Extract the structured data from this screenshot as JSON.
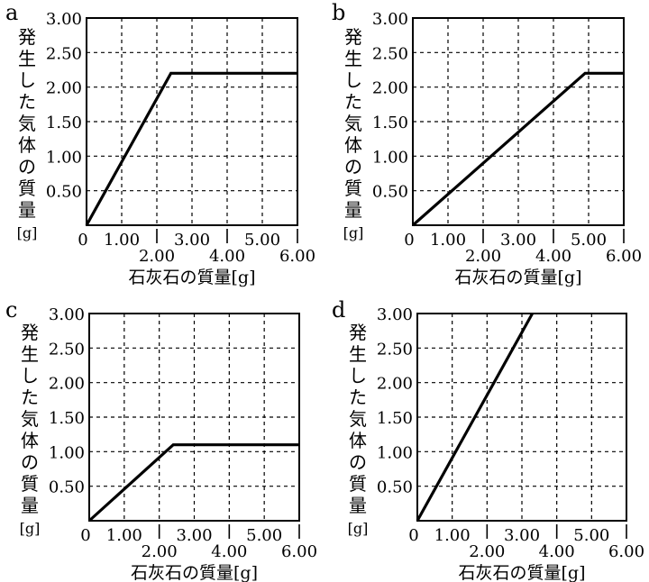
{
  "shared": {
    "ylabel_chars": [
      "発",
      "生",
      "し",
      "た",
      "気",
      "体",
      "の",
      "質",
      "量",
      "[g]"
    ],
    "xlabel": "石灰石の質量[g]",
    "xlim": [
      0,
      6
    ],
    "ylim": [
      0,
      3
    ],
    "x_ticks_upper": [
      "1.00",
      "3.00",
      "5.00"
    ],
    "x_ticks_lower": [
      "2.00",
      "4.00",
      "6.00"
    ],
    "x_tick_values_upper": [
      1,
      3,
      5
    ],
    "x_tick_values_lower": [
      2,
      4,
      6
    ],
    "origin_label": "0",
    "y_ticks": [
      "0.50",
      "1.00",
      "1.50",
      "2.00",
      "2.50",
      "3.00"
    ],
    "y_tick_values": [
      0.5,
      1,
      1.5,
      2,
      2.5,
      3
    ],
    "line_color": "#000000",
    "grid": "dashed"
  },
  "chart_data": [
    {
      "panel_label": "a",
      "type": "line",
      "x": [
        0,
        2.4,
        6
      ],
      "y": [
        0,
        2.2,
        2.2
      ],
      "xlabel": "石灰石の質量[g]",
      "ylabel": "発生した気体の質量[g]",
      "xlim": [
        0,
        6
      ],
      "ylim": [
        0,
        3
      ]
    },
    {
      "panel_label": "b",
      "type": "line",
      "x": [
        0,
        4.9,
        6
      ],
      "y": [
        0,
        2.2,
        2.2
      ],
      "xlabel": "石灰石の質量[g]",
      "ylabel": "発生した気体の質量[g]",
      "xlim": [
        0,
        6
      ],
      "ylim": [
        0,
        3
      ]
    },
    {
      "panel_label": "c",
      "type": "line",
      "x": [
        0,
        2.4,
        6
      ],
      "y": [
        0,
        1.1,
        1.1
      ],
      "xlabel": "石灰石の質量[g]",
      "ylabel": "発生した気体の質量[g]",
      "xlim": [
        0,
        6
      ],
      "ylim": [
        0,
        3
      ]
    },
    {
      "panel_label": "d",
      "type": "line",
      "x": [
        0,
        3.3
      ],
      "y": [
        0,
        3.0
      ],
      "xlabel": "石灰石の質量[g]",
      "ylabel": "発生した気体の質量[g]",
      "xlim": [
        0,
        6
      ],
      "ylim": [
        0,
        3
      ]
    }
  ]
}
